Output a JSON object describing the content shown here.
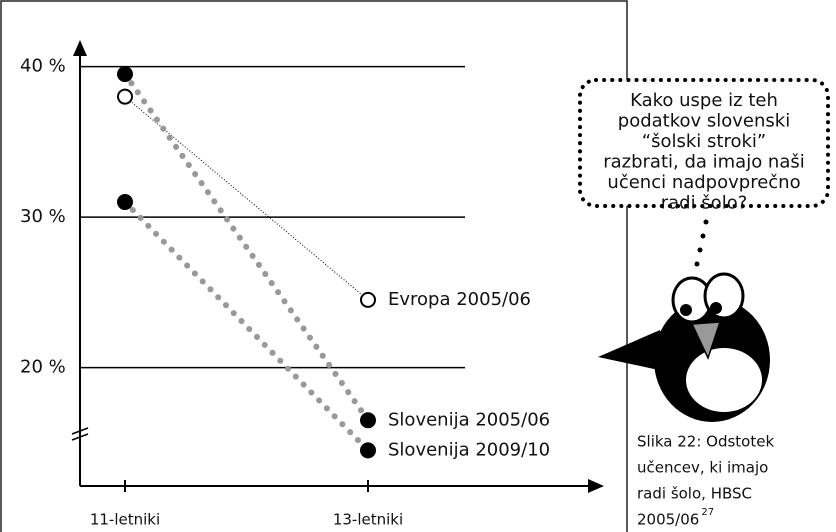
{
  "chart_data": {
    "type": "line",
    "categories": [
      "11-letniki",
      "13-letniki"
    ],
    "series": [
      {
        "name": "Evropa 2005/06",
        "color": "#000000",
        "filled": false,
        "values": [
          38,
          24.5
        ]
      },
      {
        "name": "Slovenija 2005/06",
        "color": "#000000",
        "filled": true,
        "values": [
          39.5,
          16.5
        ]
      },
      {
        "name": "Slovenija 2009/10",
        "color": "#000000",
        "filled": true,
        "values": [
          31,
          14.5
        ]
      }
    ],
    "ylim": [
      12,
      41.5
    ],
    "yticks": [
      {
        "value": 20,
        "label": "20 %"
      },
      {
        "value": 30,
        "label": "30 %"
      },
      {
        "value": 40,
        "label": "40 %"
      }
    ],
    "grid": true
  },
  "callout": {
    "lines": [
      "Kako uspe iz teh",
      "podatkov slovenski",
      "“šolski stroki”",
      "razbrati, da imajo naši",
      "učenci nadpovprečno",
      "radi šolo?"
    ]
  },
  "caption": {
    "lines": [
      "Slika 22: Odstotek",
      "učencev, ki imajo",
      "radi šolo, HBSC",
      "2005/06"
    ],
    "footnote": "27"
  }
}
